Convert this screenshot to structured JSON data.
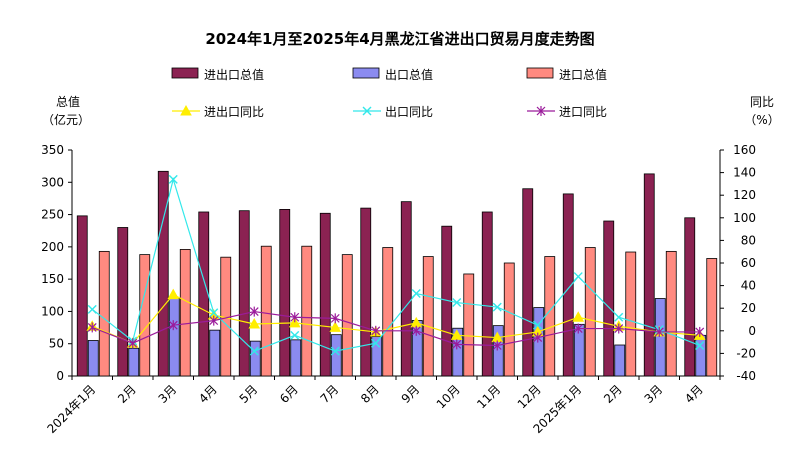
{
  "chart_data": {
    "type": "bar",
    "title": "2024年1月至2025年4月黑龙江省进出口贸易月度走势图",
    "y_left_label": [
      "总值",
      "（亿元）"
    ],
    "y_right_label": [
      "同比",
      "（%）"
    ],
    "ylim_left": [
      0,
      350
    ],
    "ylim_right": [
      -40,
      160
    ],
    "left_ticks": [
      "0",
      "50",
      "100",
      "150",
      "200",
      "250",
      "300",
      "350"
    ],
    "right_ticks": [
      "-40",
      "-20",
      "0",
      "20",
      "40",
      "60",
      "80",
      "100",
      "120",
      "140",
      "160"
    ],
    "categories": [
      "2024年1月",
      "2月",
      "3月",
      "4月",
      "5月",
      "6月",
      "7月",
      "8月",
      "9月",
      "10月",
      "11月",
      "12月",
      "2025年1月",
      "2月",
      "3月",
      "4月"
    ],
    "bar_series": [
      {
        "name": "进出口总值",
        "color": "#8b2252",
        "values": [
          248,
          230,
          317,
          254,
          256,
          258,
          252,
          260,
          270,
          232,
          254,
          290,
          282,
          240,
          313,
          245
        ]
      },
      {
        "name": "出口总值",
        "color": "#8b8bf0",
        "values": [
          55,
          43,
          120,
          71,
          54,
          56,
          64,
          61,
          86,
          74,
          78,
          106,
          80,
          48,
          120,
          63
        ]
      },
      {
        "name": "进口总值",
        "color": "#ff8a80",
        "values": [
          193,
          188,
          196,
          184,
          201,
          201,
          188,
          199,
          185,
          158,
          175,
          185,
          199,
          192,
          193,
          182
        ]
      }
    ],
    "line_series": [
      {
        "name": "进出口同比",
        "color": "#ffee00",
        "marker": "triangle",
        "values": [
          4,
          -11,
          32,
          14,
          6,
          7,
          3,
          -1,
          7,
          -4,
          -6,
          -1,
          12,
          4,
          -1,
          -4
        ]
      },
      {
        "name": "出口同比",
        "color": "#33e8ea",
        "marker": "x",
        "values": [
          19,
          -9,
          134,
          16,
          -18,
          -4,
          -18,
          -11,
          33,
          25,
          21,
          5,
          48,
          12,
          1,
          -13
        ]
      },
      {
        "name": "进口同比",
        "color": "#9b1b9b",
        "marker": "star",
        "values": [
          3,
          -11,
          5,
          9,
          17,
          12,
          11,
          0,
          0,
          -12,
          -13,
          -6,
          2,
          2,
          -1,
          -1
        ]
      }
    ]
  }
}
